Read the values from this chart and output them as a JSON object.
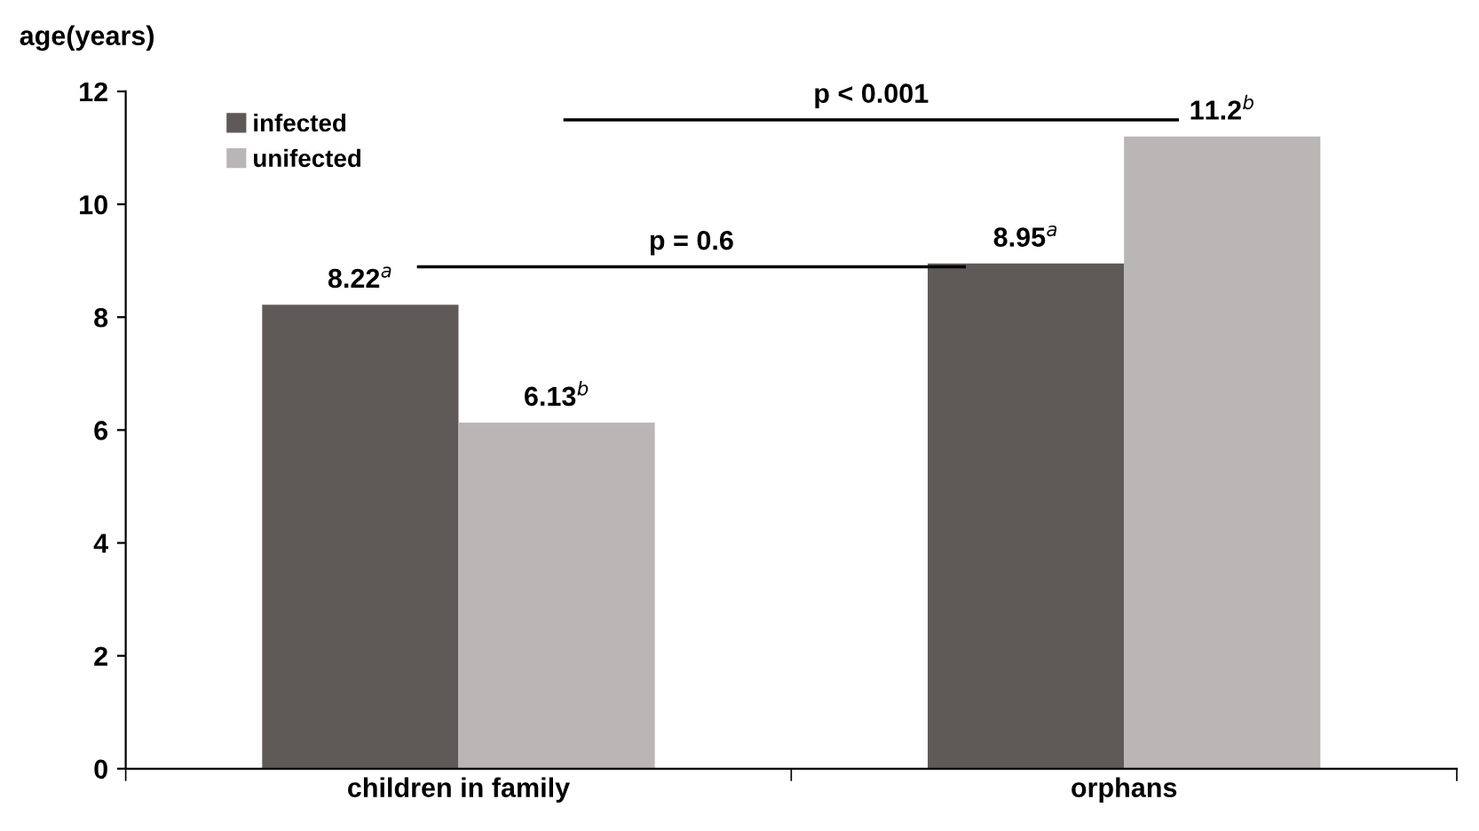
{
  "chart_data": {
    "type": "bar",
    "ylabel": "age(years)",
    "categories": [
      "children in family",
      "orphans"
    ],
    "series": [
      {
        "name": "infected",
        "color": "#5f5a58",
        "values": [
          8.22,
          8.95
        ],
        "value_labels": [
          "8.22$^{a}$",
          "8.95$^{a}$"
        ]
      },
      {
        "name": "unifected",
        "color": "#bbb6b6",
        "values": [
          6.13,
          11.2
        ],
        "value_labels": [
          "6.13$^{b}$",
          "11.2$^{b}$"
        ]
      }
    ],
    "ylim": [
      0,
      12
    ],
    "yticks": [
      0,
      2,
      4,
      6,
      8,
      10,
      12
    ],
    "grid": false,
    "legend": "top left",
    "annotations": [
      "p = 0.6",
      "p < 0.001"
    ]
  }
}
